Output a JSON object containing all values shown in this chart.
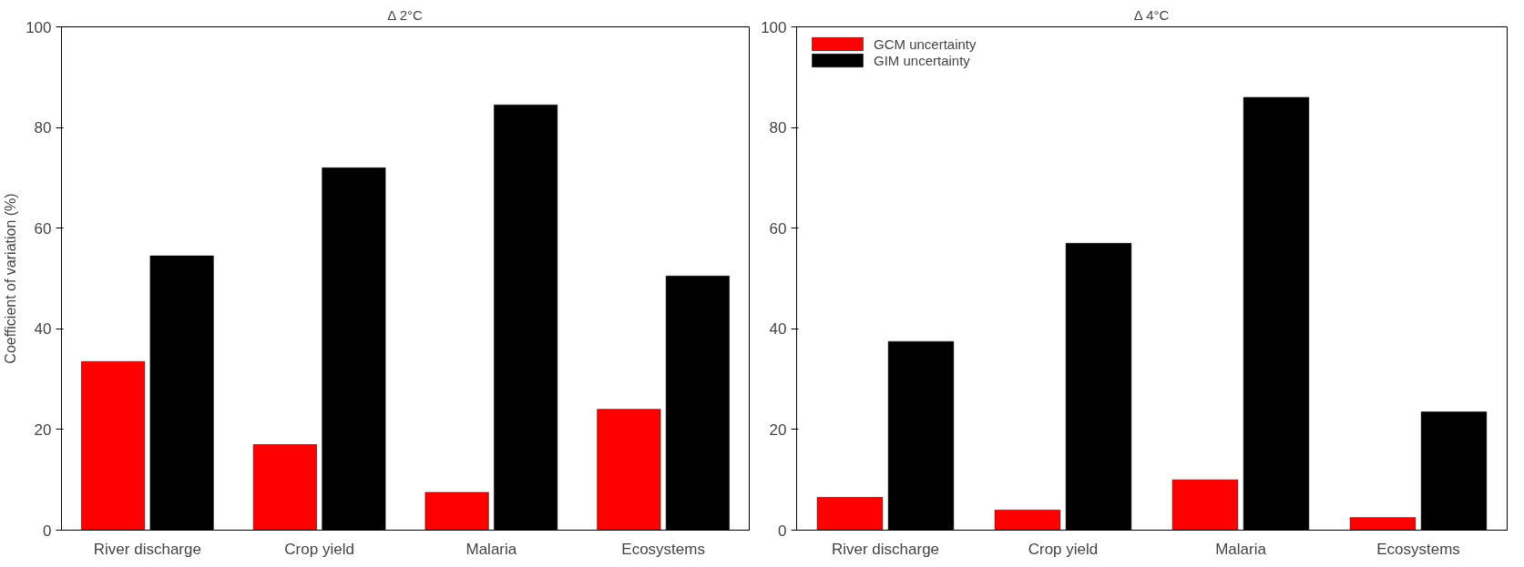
{
  "chart_data": [
    {
      "type": "bar",
      "title": "Δ 2°C",
      "ylabel": "Coefficient of variation (%)",
      "categories": [
        "River discharge",
        "Crop yield",
        "Malaria",
        "Ecosystems"
      ],
      "series": [
        {
          "color": "#ff0000",
          "values": [
            33.5,
            17,
            7.5,
            24
          ]
        },
        {
          "color": "#000000",
          "values": [
            54.5,
            72,
            84.5,
            50.5
          ]
        }
      ],
      "ylim": [
        0,
        100
      ],
      "yticks": [
        0,
        20,
        40,
        60,
        80,
        100
      ],
      "grid": false,
      "legend": false
    },
    {
      "type": "bar",
      "title": "Δ 4°C",
      "categories": [
        "River discharge",
        "Crop yield",
        "Malaria",
        "Ecosystems"
      ],
      "series": [
        {
          "name": "GCM uncertainty",
          "color": "#ff0000",
          "values": [
            6.5,
            4,
            10,
            2.5
          ]
        },
        {
          "name": "GIM uncertainty",
          "color": "#000000",
          "values": [
            37.5,
            57,
            86,
            23.5
          ]
        }
      ],
      "ylim": [
        0,
        100
      ],
      "yticks": [
        0,
        20,
        40,
        60,
        80,
        100
      ],
      "grid": false,
      "legend": "top left"
    }
  ]
}
